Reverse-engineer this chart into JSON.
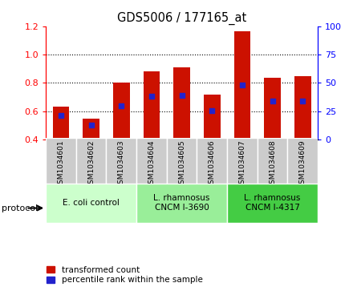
{
  "title": "GDS5006 / 177165_at",
  "samples": [
    "GSM1034601",
    "GSM1034602",
    "GSM1034603",
    "GSM1034604",
    "GSM1034605",
    "GSM1034606",
    "GSM1034607",
    "GSM1034608",
    "GSM1034609"
  ],
  "transformed_count": [
    0.635,
    0.55,
    0.8,
    0.88,
    0.91,
    0.715,
    1.165,
    0.835,
    0.85
  ],
  "percentile_rank": [
    0.57,
    0.505,
    0.638,
    0.705,
    0.71,
    0.605,
    0.785,
    0.67,
    0.672
  ],
  "bar_color": "#CC1100",
  "percentile_color": "#2222CC",
  "ylim_left": [
    0.4,
    1.2
  ],
  "ylim_right": [
    0,
    100
  ],
  "yticks_left": [
    0.4,
    0.6,
    0.8,
    1.0,
    1.2
  ],
  "yticks_right": [
    0,
    25,
    50,
    75,
    100
  ],
  "protocols": [
    {
      "label": "E. coli control",
      "samples": [
        0,
        1,
        2
      ],
      "color": "#CCFFCC"
    },
    {
      "label": "L. rhamnosus\nCNCM I-3690",
      "samples": [
        3,
        4,
        5
      ],
      "color": "#99EE99"
    },
    {
      "label": "L. rhamnosus\nCNCM I-4317",
      "samples": [
        6,
        7,
        8
      ],
      "color": "#44CC44"
    }
  ],
  "legend_items": [
    {
      "label": "transformed count",
      "color": "#CC1100"
    },
    {
      "label": "percentile rank within the sample",
      "color": "#2222CC"
    }
  ],
  "protocol_label": "protocol",
  "background_color": "#FFFFFF",
  "sample_box_color": "#CCCCCC",
  "bar_width": 0.55
}
